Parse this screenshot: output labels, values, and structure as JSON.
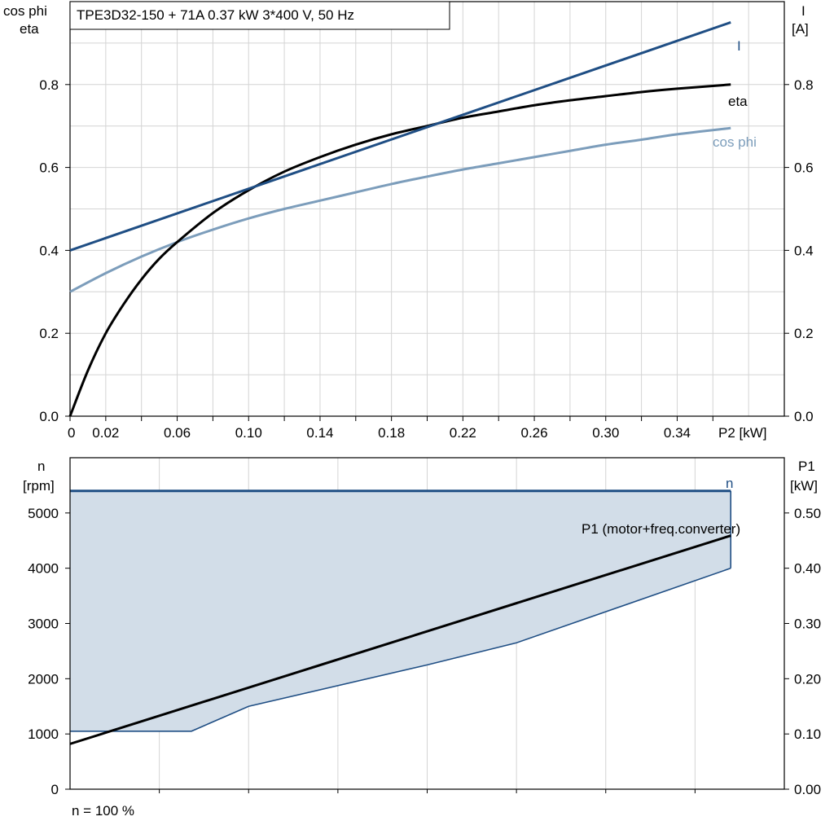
{
  "colors": {
    "current": "#1f4e84",
    "efficiency": "#000000",
    "power_factor": "#7c9dbb",
    "speed_line": "#1f4e84",
    "speed_fill": "#d2dde8",
    "p1": "#000000",
    "grid": "#d4d4d4",
    "axis": "#000000"
  },
  "chart_data": [
    {
      "type": "line",
      "title": "TPE3D32-150 + 71A   0.37 kW   3*400 V, 50 Hz",
      "y_left_label": [
        "cos phi",
        "eta"
      ],
      "y_right_label": [
        "I",
        "[A]"
      ],
      "x_unit_label": "P2 [kW]",
      "xlim": [
        0,
        0.4
      ],
      "ylim_left": [
        0,
        1.0
      ],
      "ylim_right": [
        0,
        1.0
      ],
      "x_ticks": [
        "0",
        "0.02",
        "0.06",
        "0.10",
        "0.14",
        "0.18",
        "0.22",
        "0.26",
        "0.30",
        "0.34"
      ],
      "x_tick_values": [
        0,
        0.02,
        0.06,
        0.1,
        0.14,
        0.18,
        0.22,
        0.26,
        0.3,
        0.34
      ],
      "y_ticks_left": [
        "0.0",
        "0.2",
        "0.4",
        "0.6",
        "0.8"
      ],
      "y_ticks_right": [
        "0.0",
        "0.2",
        "0.4",
        "0.6",
        "0.8"
      ],
      "y_tick_values": [
        0,
        0.2,
        0.4,
        0.6,
        0.8
      ],
      "grid": true,
      "series": [
        {
          "name": "I",
          "axis": "right",
          "color_key": "current",
          "x": [
            0,
            0.37
          ],
          "y": [
            0.4,
            0.95
          ]
        },
        {
          "name": "eta",
          "axis": "left",
          "color_key": "efficiency",
          "x": [
            0,
            0.01,
            0.02,
            0.03,
            0.04,
            0.05,
            0.06,
            0.08,
            0.1,
            0.12,
            0.14,
            0.16,
            0.18,
            0.2,
            0.22,
            0.24,
            0.26,
            0.28,
            0.3,
            0.32,
            0.34,
            0.37
          ],
          "y": [
            0.0,
            0.11,
            0.2,
            0.27,
            0.33,
            0.38,
            0.42,
            0.49,
            0.545,
            0.59,
            0.625,
            0.655,
            0.68,
            0.7,
            0.72,
            0.735,
            0.75,
            0.762,
            0.772,
            0.782,
            0.79,
            0.8
          ]
        },
        {
          "name": "cos phi",
          "axis": "left",
          "color_key": "power_factor",
          "x": [
            0,
            0.02,
            0.04,
            0.06,
            0.08,
            0.1,
            0.12,
            0.14,
            0.16,
            0.18,
            0.2,
            0.22,
            0.24,
            0.26,
            0.28,
            0.3,
            0.32,
            0.34,
            0.37
          ],
          "y": [
            0.3,
            0.345,
            0.385,
            0.42,
            0.45,
            0.477,
            0.5,
            0.52,
            0.54,
            0.56,
            0.578,
            0.595,
            0.61,
            0.625,
            0.64,
            0.655,
            0.667,
            0.68,
            0.695
          ]
        }
      ]
    },
    {
      "type": "area",
      "y_left_label": [
        "n",
        "[rpm]"
      ],
      "y_right_label": [
        "P1",
        "[kW]"
      ],
      "xlim": [
        0,
        0.4
      ],
      "ylim_left": [
        0,
        6000
      ],
      "ylim_right": [
        0,
        0.6
      ],
      "y_ticks_left": [
        "0",
        "1000",
        "2000",
        "3000",
        "4000",
        "5000"
      ],
      "y_tick_values_left": [
        0,
        1000,
        2000,
        3000,
        4000,
        5000
      ],
      "y_ticks_right": [
        "0.00",
        "0.10",
        "0.20",
        "0.30",
        "0.40",
        "0.50"
      ],
      "y_tick_values_right": [
        0,
        0.1,
        0.2,
        0.3,
        0.4,
        0.5
      ],
      "grid": true,
      "footnote": "n = 100 %",
      "series": [
        {
          "name": "n",
          "axis": "left",
          "color_key": "speed_line",
          "x": [
            0,
            0.37
          ],
          "y": [
            5400,
            5400
          ]
        },
        {
          "name": "n min",
          "axis": "left",
          "color_key": "speed_line",
          "x": [
            0,
            0.068,
            0.1,
            0.2,
            0.25,
            0.37
          ],
          "y": [
            1050,
            1050,
            1500,
            2250,
            2650,
            4000
          ]
        },
        {
          "name": "P1 (motor+freq.converter)",
          "axis": "right",
          "color_key": "p1",
          "x": [
            0,
            0.37
          ],
          "y": [
            0.082,
            0.459
          ]
        }
      ]
    }
  ]
}
